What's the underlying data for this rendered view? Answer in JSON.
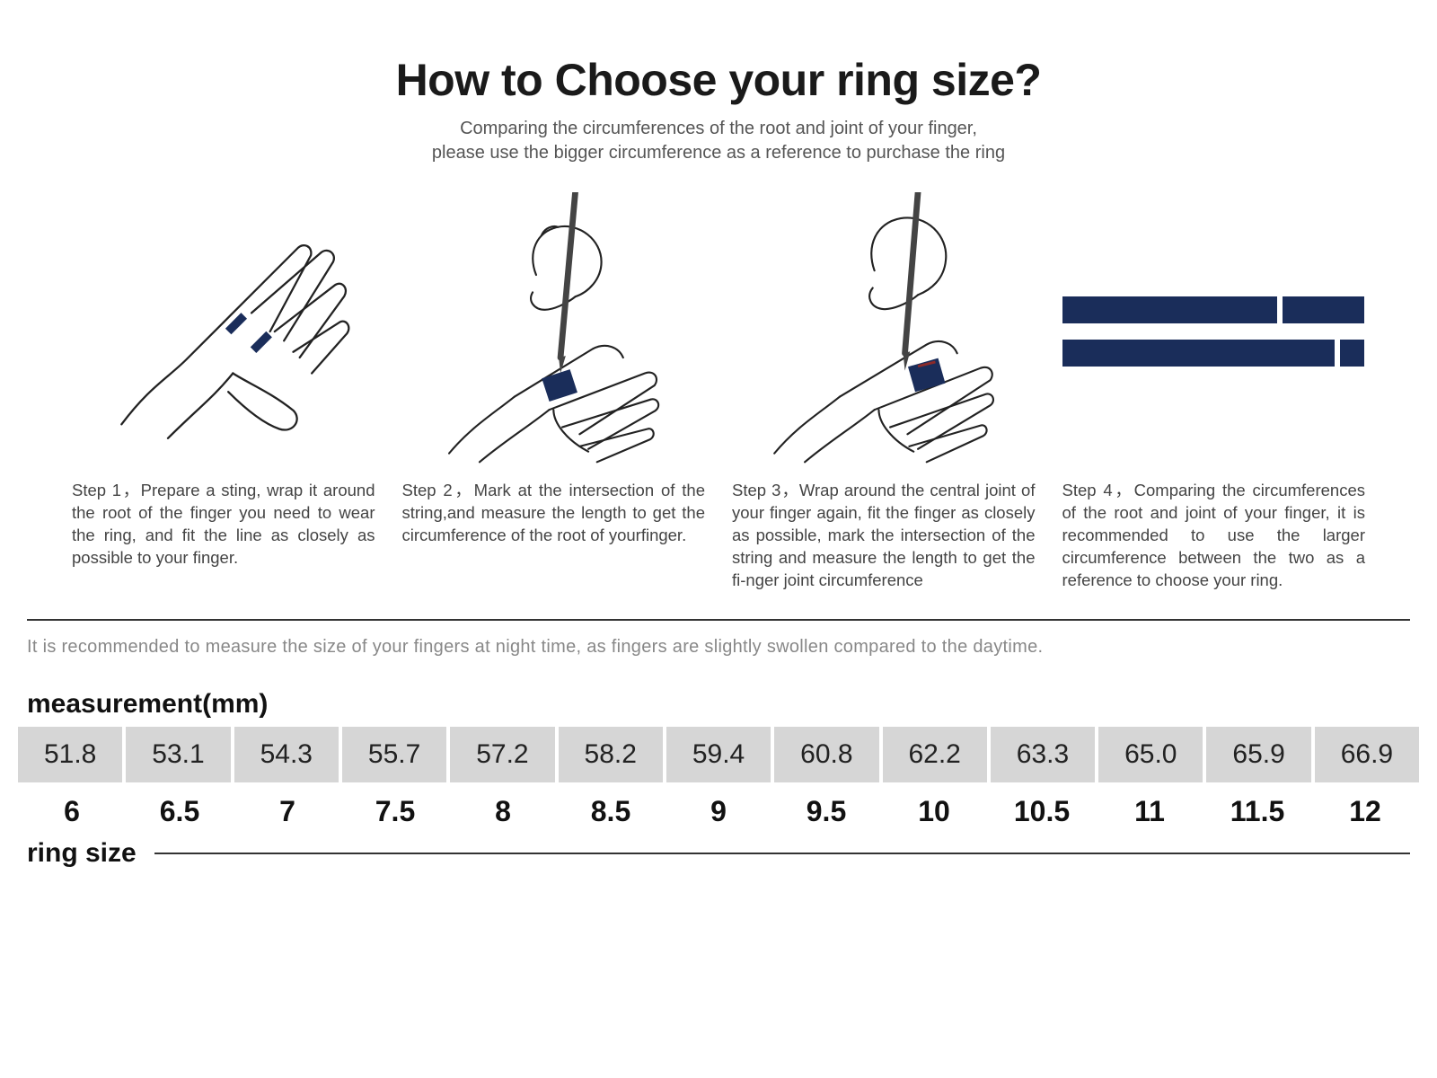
{
  "title": "How to Choose your ring size?",
  "subtitle_line1": "Comparing the circumferences of the root and joint of your finger,",
  "subtitle_line2": "please use the bigger circumference as a reference to purchase the ring",
  "steps": [
    {
      "text": "Step 1，Prepare a sting, wrap it around the root of the finger you need to wear the ring, and fit the  line as closely as possible to your finger."
    },
    {
      "text": "Step 2，Mark at the intersection of the string,and measure the length to get the circumference of the root of yourfinger."
    },
    {
      "text": "Step 3，Wrap around the central joint of your finger again, fit the finger as closely as possible, mark the intersection of the string and measure the length to get the fi-nger joint circumference"
    },
    {
      "text": "Step 4，Comparing the circumferences of the root and joint of your finger, it is recommended to use the larger circumference between the two as a reference to choose your ring."
    }
  ],
  "tip": "It is recommended to measure the size of your fingers at night time, as fingers are slightly swollen compared to the daytime.",
  "table": {
    "measurement_label": "measurement(mm)",
    "ring_size_label": "ring size",
    "measurement_row_bg": "#d6d6d6",
    "measurements_mm": [
      "51.8",
      "53.1",
      "54.3",
      "55.7",
      "57.2",
      "58.2",
      "59.4",
      "60.8",
      "62.2",
      "63.3",
      "65.0",
      "65.9",
      "66.9"
    ],
    "ring_sizes": [
      "6",
      "6.5",
      "7",
      "7.5",
      "8",
      "8.5",
      "9",
      "9.5",
      "10",
      "10.5",
      "11",
      "11.5",
      "12"
    ]
  },
  "colors": {
    "accent_navy": "#1a2d5a",
    "outline": "#222222",
    "text_muted": "#888888"
  },
  "step4_bars": {
    "row1": {
      "left_pct": 71,
      "right_pct": 27
    },
    "row2": {
      "left_pct": 90,
      "right_pct": 8
    }
  }
}
